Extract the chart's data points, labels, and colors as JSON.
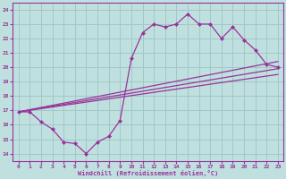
{
  "background_color": "#c0e0e0",
  "grid_color": "#a0c8c8",
  "line_color": "#993399",
  "marker_color": "#993399",
  "xlabel": "Windchill (Refroidissement éolien,°C)",
  "xlim": [
    -0.5,
    23.5
  ],
  "ylim": [
    13.5,
    24.5
  ],
  "xticks": [
    0,
    1,
    2,
    3,
    4,
    5,
    6,
    7,
    8,
    9,
    10,
    11,
    12,
    13,
    14,
    15,
    16,
    17,
    18,
    19,
    20,
    21,
    22,
    23
  ],
  "yticks": [
    14,
    15,
    16,
    17,
    18,
    19,
    20,
    21,
    22,
    23,
    24
  ],
  "line1_x": [
    0,
    1,
    2,
    3,
    4,
    5,
    6,
    7,
    8,
    9,
    10,
    11,
    12,
    13,
    14,
    15,
    16,
    17,
    18,
    19,
    20,
    21,
    22,
    23
  ],
  "line1_y": [
    16.9,
    16.9,
    16.2,
    15.7,
    14.8,
    14.7,
    14.0,
    14.8,
    15.2,
    16.3,
    20.6,
    22.4,
    23.0,
    22.8,
    23.0,
    23.7,
    23.0,
    23.0,
    22.0,
    22.8,
    21.9,
    21.2,
    20.2,
    20.0
  ],
  "line2_x": [
    0,
    23
  ],
  "line2_y": [
    16.9,
    19.5
  ],
  "line3_x": [
    0,
    23
  ],
  "line3_y": [
    16.9,
    19.9
  ],
  "line4_x": [
    0,
    23
  ],
  "line4_y": [
    16.9,
    20.4
  ]
}
